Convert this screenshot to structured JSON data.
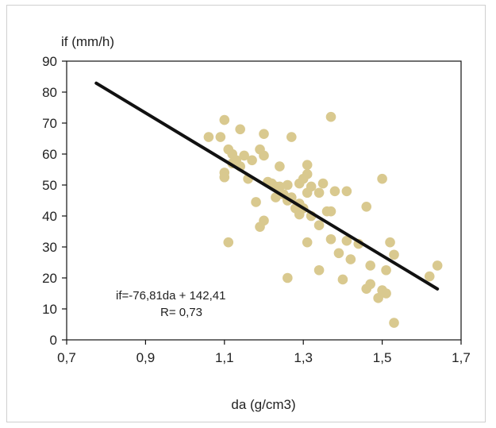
{
  "chart_data": {
    "type": "scatter",
    "ylabel": "if (mm/h)",
    "xlabel": "da (g/cm3)",
    "xlim": [
      0.7,
      1.7
    ],
    "ylim": [
      0,
      90
    ],
    "x_ticks": [
      "0,7",
      "0,9",
      "1,1",
      "1,3",
      "1,5",
      "1,7"
    ],
    "x_tick_values": [
      0.7,
      0.9,
      1.1,
      1.3,
      1.5,
      1.7
    ],
    "y_ticks": [
      "0",
      "10",
      "20",
      "30",
      "40",
      "50",
      "60",
      "70",
      "80",
      "90"
    ],
    "y_tick_values": [
      0,
      10,
      20,
      30,
      40,
      50,
      60,
      70,
      80,
      90
    ],
    "grid": false,
    "marker_color": "#d9c98f",
    "line_color": "#111111",
    "trendline": {
      "slope": -76.81,
      "intercept": 142.41,
      "x_start": 0.775,
      "x_end": 1.64
    },
    "annotations": [
      "if=-76,81da + 142,41",
      "R= 0,73"
    ],
    "points": [
      [
        1.06,
        65.5
      ],
      [
        1.09,
        65.5
      ],
      [
        1.1,
        71
      ],
      [
        1.14,
        68
      ],
      [
        1.11,
        61.5
      ],
      [
        1.12,
        60
      ],
      [
        1.1,
        54
      ],
      [
        1.1,
        52.5
      ],
      [
        1.12,
        57
      ],
      [
        1.13,
        58
      ],
      [
        1.15,
        59.5
      ],
      [
        1.14,
        56
      ],
      [
        1.16,
        52
      ],
      [
        1.17,
        58
      ],
      [
        1.19,
        61.5
      ],
      [
        1.2,
        59.5
      ],
      [
        1.2,
        66.5
      ],
      [
        1.18,
        44.5
      ],
      [
        1.19,
        36.5
      ],
      [
        1.2,
        38.5
      ],
      [
        1.21,
        51
      ],
      [
        1.22,
        50.5
      ],
      [
        1.23,
        49.5
      ],
      [
        1.24,
        56
      ],
      [
        1.24,
        49.5
      ],
      [
        1.25,
        47
      ],
      [
        1.26,
        50
      ],
      [
        1.26,
        45
      ],
      [
        1.27,
        46
      ],
      [
        1.27,
        65.5
      ],
      [
        1.28,
        42.5
      ],
      [
        1.29,
        44
      ],
      [
        1.29,
        50.5
      ],
      [
        1.3,
        52
      ],
      [
        1.31,
        53.5
      ],
      [
        1.31,
        56.5
      ],
      [
        1.32,
        49.5
      ],
      [
        1.31,
        47.5
      ],
      [
        1.3,
        42.5
      ],
      [
        1.29,
        40.5
      ],
      [
        1.32,
        40
      ],
      [
        1.31,
        31.5
      ],
      [
        1.34,
        37
      ],
      [
        1.34,
        47.5
      ],
      [
        1.35,
        50.5
      ],
      [
        1.36,
        41.5
      ],
      [
        1.37,
        41.5
      ],
      [
        1.38,
        48
      ],
      [
        1.37,
        72
      ],
      [
        1.37,
        32.5
      ],
      [
        1.39,
        28
      ],
      [
        1.41,
        48
      ],
      [
        1.41,
        32
      ],
      [
        1.42,
        26
      ],
      [
        1.44,
        31
      ],
      [
        1.4,
        19.5
      ],
      [
        1.46,
        43
      ],
      [
        1.47,
        24
      ],
      [
        1.47,
        18
      ],
      [
        1.46,
        16.5
      ],
      [
        1.49,
        13.5
      ],
      [
        1.5,
        16
      ],
      [
        1.5,
        52
      ],
      [
        1.51,
        22.5
      ],
      [
        1.52,
        31.5
      ],
      [
        1.51,
        15
      ],
      [
        1.53,
        27.5
      ],
      [
        1.53,
        5.5
      ],
      [
        1.34,
        22.5
      ],
      [
        1.26,
        20
      ],
      [
        1.11,
        31.5
      ],
      [
        1.23,
        46
      ],
      [
        1.62,
        20.5
      ],
      [
        1.64,
        24
      ]
    ]
  }
}
